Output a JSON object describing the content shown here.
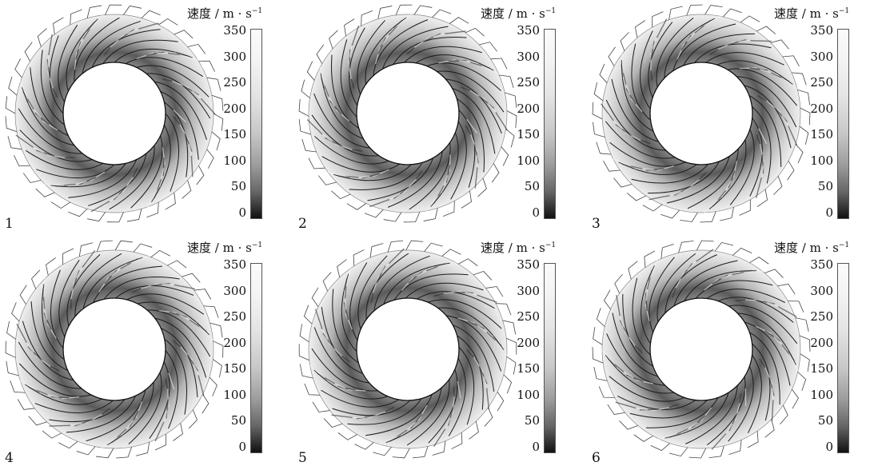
{
  "colorbar": {
    "unit_main": "速度 / m · s",
    "unit_sup": "−1",
    "ticks": [
      "350",
      "300",
      "250",
      "200",
      "150",
      "100",
      "50",
      "0"
    ]
  },
  "panels": [
    {
      "label": "1"
    },
    {
      "label": "2"
    },
    {
      "label": "3"
    },
    {
      "label": "4"
    },
    {
      "label": "5"
    },
    {
      "label": "6"
    }
  ],
  "colors": {
    "hub_fill": "#ffffff",
    "blade": "#1a1a1a",
    "flow_dark": "#3a3a3a",
    "flow_light": "#c9c9c9"
  }
}
